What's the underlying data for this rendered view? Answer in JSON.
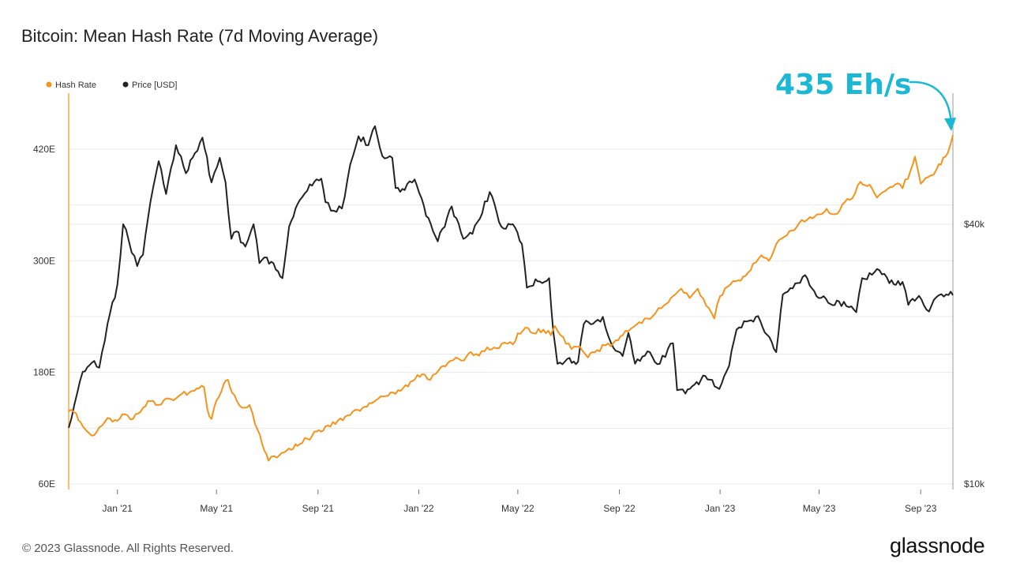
{
  "title": "Bitcoin: Mean Hash Rate (7d Moving Average)",
  "footer": "© 2023 Glassnode. All Rights Reserved.",
  "brand": "glassnode",
  "colors": {
    "hash_rate": "#f7931a",
    "price": "#222222",
    "callout": "#1ab8d4",
    "grid": "#e9e9e9"
  },
  "chart_data": {
    "type": "line",
    "title": "Bitcoin: Mean Hash Rate (7d Moving Average)",
    "annotation": "435 Eh/s",
    "x_start": "2020-11-03",
    "x_end": "2023-10-10",
    "x_ticks": [
      {
        "label": "Jan '21",
        "date": "2021-01-01"
      },
      {
        "label": "May '21",
        "date": "2021-05-01"
      },
      {
        "label": "Sep '21",
        "date": "2021-09-01"
      },
      {
        "label": "Jan '22",
        "date": "2022-01-01"
      },
      {
        "label": "May '22",
        "date": "2022-05-01"
      },
      {
        "label": "Sep '22",
        "date": "2022-09-01"
      },
      {
        "label": "Jan '23",
        "date": "2023-01-01"
      },
      {
        "label": "May '23",
        "date": "2023-05-01"
      },
      {
        "label": "Sep '23",
        "date": "2023-09-01"
      }
    ],
    "left_axis": {
      "name": "Hash Rate",
      "unit": "Eh/s",
      "range": [
        60,
        480
      ],
      "ticks": [
        {
          "value": 60,
          "label": "60E"
        },
        {
          "value": 180,
          "label": "180E"
        },
        {
          "value": 300,
          "label": "300E"
        },
        {
          "value": 420,
          "label": "420E"
        }
      ]
    },
    "right_axis": {
      "name": "Price [USD]",
      "scale": "log",
      "range": [
        10000,
        75000
      ],
      "ticks": [
        {
          "value": 10000,
          "label": "$10k"
        },
        {
          "value": 40000,
          "label": "$40k"
        }
      ]
    },
    "series": [
      {
        "name": "Hash Rate",
        "axis": "left",
        "color": "#f7931a",
        "points": [
          [
            "2020-11-03",
            138
          ],
          [
            "2020-11-12",
            136
          ],
          [
            "2020-11-20",
            122
          ],
          [
            "2020-12-01",
            112
          ],
          [
            "2020-12-10",
            121
          ],
          [
            "2020-12-20",
            131
          ],
          [
            "2021-01-01",
            128
          ],
          [
            "2021-01-10",
            135
          ],
          [
            "2021-01-20",
            130
          ],
          [
            "2021-02-01",
            142
          ],
          [
            "2021-02-10",
            149
          ],
          [
            "2021-02-20",
            145
          ],
          [
            "2021-03-01",
            152
          ],
          [
            "2021-03-10",
            150
          ],
          [
            "2021-03-20",
            157
          ],
          [
            "2021-04-01",
            160
          ],
          [
            "2021-04-10",
            163
          ],
          [
            "2021-04-16",
            164
          ],
          [
            "2021-04-20",
            140
          ],
          [
            "2021-04-25",
            130
          ],
          [
            "2021-05-01",
            150
          ],
          [
            "2021-05-10",
            168
          ],
          [
            "2021-05-15",
            172
          ],
          [
            "2021-05-20",
            158
          ],
          [
            "2021-06-01",
            142
          ],
          [
            "2021-06-10",
            145
          ],
          [
            "2021-06-20",
            118
          ],
          [
            "2021-06-28",
            96
          ],
          [
            "2021-07-03",
            85
          ],
          [
            "2021-07-10",
            90
          ],
          [
            "2021-07-25",
            96
          ],
          [
            "2021-08-10",
            103
          ],
          [
            "2021-08-25",
            112
          ],
          [
            "2021-09-10",
            122
          ],
          [
            "2021-09-25",
            128
          ],
          [
            "2021-10-10",
            134
          ],
          [
            "2021-10-25",
            142
          ],
          [
            "2021-11-10",
            150
          ],
          [
            "2021-11-25",
            155
          ],
          [
            "2021-12-10",
            160
          ],
          [
            "2021-12-25",
            171
          ],
          [
            "2022-01-05",
            178
          ],
          [
            "2022-01-15",
            172
          ],
          [
            "2022-01-25",
            182
          ],
          [
            "2022-02-05",
            190
          ],
          [
            "2022-02-15",
            196
          ],
          [
            "2022-02-25",
            193
          ],
          [
            "2022-03-05",
            202
          ],
          [
            "2022-03-15",
            198
          ],
          [
            "2022-03-25",
            207
          ],
          [
            "2022-04-05",
            206
          ],
          [
            "2022-04-15",
            212
          ],
          [
            "2022-04-25",
            210
          ],
          [
            "2022-05-01",
            222
          ],
          [
            "2022-05-10",
            228
          ],
          [
            "2022-05-20",
            222
          ],
          [
            "2022-06-01",
            226
          ],
          [
            "2022-06-10",
            220
          ],
          [
            "2022-06-15",
            230
          ],
          [
            "2022-06-25",
            218
          ],
          [
            "2022-07-05",
            205
          ],
          [
            "2022-07-15",
            208
          ],
          [
            "2022-07-25",
            196
          ],
          [
            "2022-08-05",
            204
          ],
          [
            "2022-08-15",
            209
          ],
          [
            "2022-08-25",
            212
          ],
          [
            "2022-09-05",
            220
          ],
          [
            "2022-09-15",
            227
          ],
          [
            "2022-09-25",
            234
          ],
          [
            "2022-10-05",
            238
          ],
          [
            "2022-10-15",
            244
          ],
          [
            "2022-10-25",
            252
          ],
          [
            "2022-11-05",
            262
          ],
          [
            "2022-11-15",
            270
          ],
          [
            "2022-11-25",
            260
          ],
          [
            "2022-12-05",
            270
          ],
          [
            "2022-12-15",
            252
          ],
          [
            "2022-12-25",
            238
          ],
          [
            "2023-01-01",
            262
          ],
          [
            "2023-01-10",
            272
          ],
          [
            "2023-01-20",
            278
          ],
          [
            "2023-02-01",
            284
          ],
          [
            "2023-02-10",
            297
          ],
          [
            "2023-02-20",
            306
          ],
          [
            "2023-03-01",
            300
          ],
          [
            "2023-03-10",
            318
          ],
          [
            "2023-03-20",
            326
          ],
          [
            "2023-04-01",
            333
          ],
          [
            "2023-04-10",
            344
          ],
          [
            "2023-04-20",
            347
          ],
          [
            "2023-05-01",
            350
          ],
          [
            "2023-05-10",
            356
          ],
          [
            "2023-05-20",
            350
          ],
          [
            "2023-06-01",
            363
          ],
          [
            "2023-06-10",
            367
          ],
          [
            "2023-06-20",
            385
          ],
          [
            "2023-07-01",
            382
          ],
          [
            "2023-07-10",
            368
          ],
          [
            "2023-07-20",
            375
          ],
          [
            "2023-08-01",
            382
          ],
          [
            "2023-08-10",
            378
          ],
          [
            "2023-08-20",
            398
          ],
          [
            "2023-08-25",
            412
          ],
          [
            "2023-09-01",
            383
          ],
          [
            "2023-09-10",
            390
          ],
          [
            "2023-09-20",
            398
          ],
          [
            "2023-10-01",
            412
          ],
          [
            "2023-10-07",
            425
          ],
          [
            "2023-10-10",
            435
          ]
        ]
      },
      {
        "name": "Price [USD]",
        "axis": "right",
        "color": "#222222",
        "points": [
          [
            "2020-11-03",
            13500
          ],
          [
            "2020-11-10",
            15300
          ],
          [
            "2020-11-20",
            18200
          ],
          [
            "2020-12-01",
            19100
          ],
          [
            "2020-12-10",
            18600
          ],
          [
            "2020-12-20",
            23500
          ],
          [
            "2021-01-01",
            29000
          ],
          [
            "2021-01-08",
            40000
          ],
          [
            "2021-01-15",
            36500
          ],
          [
            "2021-01-25",
            32000
          ],
          [
            "2021-02-01",
            34000
          ],
          [
            "2021-02-10",
            45000
          ],
          [
            "2021-02-20",
            56000
          ],
          [
            "2021-03-01",
            47000
          ],
          [
            "2021-03-13",
            61000
          ],
          [
            "2021-03-25",
            52500
          ],
          [
            "2021-04-05",
            58500
          ],
          [
            "2021-04-14",
            63500
          ],
          [
            "2021-04-25",
            50000
          ],
          [
            "2021-05-05",
            57000
          ],
          [
            "2021-05-12",
            50000
          ],
          [
            "2021-05-19",
            37000
          ],
          [
            "2021-05-25",
            38500
          ],
          [
            "2021-06-05",
            35500
          ],
          [
            "2021-06-15",
            40000
          ],
          [
            "2021-06-22",
            32500
          ],
          [
            "2021-07-01",
            33500
          ],
          [
            "2021-07-20",
            30000
          ],
          [
            "2021-07-28",
            39500
          ],
          [
            "2021-08-10",
            45500
          ],
          [
            "2021-08-22",
            49500
          ],
          [
            "2021-09-05",
            51000
          ],
          [
            "2021-09-10",
            45000
          ],
          [
            "2021-09-20",
            43000
          ],
          [
            "2021-09-30",
            43500
          ],
          [
            "2021-10-10",
            55000
          ],
          [
            "2021-10-20",
            64000
          ],
          [
            "2021-11-01",
            61000
          ],
          [
            "2021-11-09",
            67500
          ],
          [
            "2021-11-18",
            57500
          ],
          [
            "2021-11-30",
            57000
          ],
          [
            "2021-12-04",
            48500
          ],
          [
            "2021-12-15",
            48000
          ],
          [
            "2021-12-27",
            50800
          ],
          [
            "2022-01-10",
            41800
          ],
          [
            "2022-01-24",
            36500
          ],
          [
            "2022-02-10",
            44000
          ],
          [
            "2022-02-24",
            37000
          ],
          [
            "2022-03-07",
            38000
          ],
          [
            "2022-03-28",
            47500
          ],
          [
            "2022-04-11",
            39500
          ],
          [
            "2022-04-25",
            40000
          ],
          [
            "2022-05-06",
            36000
          ],
          [
            "2022-05-12",
            28500
          ],
          [
            "2022-05-25",
            29500
          ],
          [
            "2022-06-08",
            30000
          ],
          [
            "2022-06-13",
            22500
          ],
          [
            "2022-06-18",
            19000
          ],
          [
            "2022-06-30",
            19500
          ],
          [
            "2022-07-13",
            19200
          ],
          [
            "2022-07-20",
            23500
          ],
          [
            "2022-07-31",
            23500
          ],
          [
            "2022-08-12",
            24400
          ],
          [
            "2022-08-22",
            21200
          ],
          [
            "2022-09-05",
            19800
          ],
          [
            "2022-09-12",
            22400
          ],
          [
            "2022-09-20",
            19000
          ],
          [
            "2022-10-05",
            20300
          ],
          [
            "2022-10-20",
            19000
          ],
          [
            "2022-10-30",
            20600
          ],
          [
            "2022-11-05",
            21200
          ],
          [
            "2022-11-10",
            16500
          ],
          [
            "2022-11-20",
            16200
          ],
          [
            "2022-12-01",
            17000
          ],
          [
            "2022-12-14",
            17800
          ],
          [
            "2022-12-31",
            16600
          ],
          [
            "2023-01-12",
            18800
          ],
          [
            "2023-01-21",
            22800
          ],
          [
            "2023-02-02",
            23800
          ],
          [
            "2023-02-16",
            24500
          ],
          [
            "2023-03-10",
            20200
          ],
          [
            "2023-03-18",
            27500
          ],
          [
            "2023-03-30",
            28400
          ],
          [
            "2023-04-11",
            30200
          ],
          [
            "2023-04-14",
            30500
          ],
          [
            "2023-04-25",
            28000
          ],
          [
            "2023-05-12",
            26300
          ],
          [
            "2023-05-25",
            26500
          ],
          [
            "2023-06-15",
            25000
          ],
          [
            "2023-06-22",
            30000
          ],
          [
            "2023-07-13",
            31300
          ],
          [
            "2023-07-25",
            29200
          ],
          [
            "2023-08-10",
            29400
          ],
          [
            "2023-08-17",
            26000
          ],
          [
            "2023-08-30",
            27300
          ],
          [
            "2023-09-11",
            25100
          ],
          [
            "2023-09-20",
            27100
          ],
          [
            "2023-10-02",
            27500
          ],
          [
            "2023-10-10",
            27400
          ]
        ]
      }
    ]
  }
}
